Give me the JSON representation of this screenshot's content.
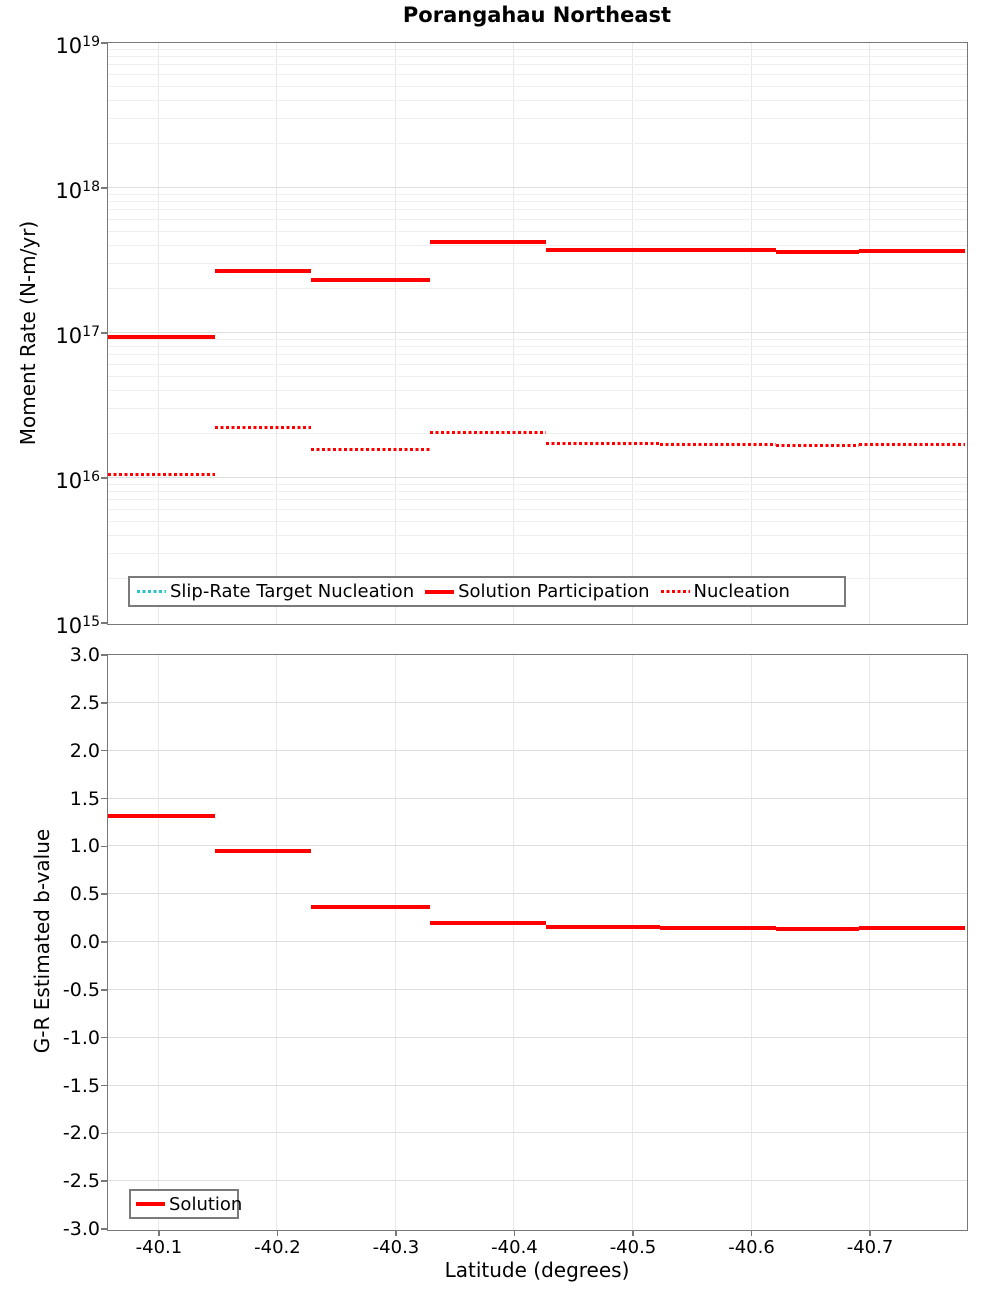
{
  "figure_title": "Porangahau Northeast",
  "colors": {
    "solution_red": "#ff0000",
    "slip_rate_target_teal": "#2bc4c6",
    "frame_gray": "#787878",
    "grid_minor": "#efefef",
    "grid_major": "#dedede",
    "background": "#ffffff"
  },
  "chart_data": [
    {
      "type": "line",
      "subtype": "horizontal-step-segments",
      "title": "Porangahau Northeast",
      "ylabel": "Moment Rate (N-m/yr)",
      "yscale": "log",
      "ylim": [
        1000000000000000.0,
        1e+19
      ],
      "y_tick_exponents": [
        19,
        18,
        17,
        16,
        15
      ],
      "xlim": [
        -40.057,
        -40.781
      ],
      "x_ticks": [
        -40.1,
        -40.2,
        -40.3,
        -40.4,
        -40.5,
        -40.6,
        -40.7
      ],
      "x_tick_labels_visible": false,
      "grid": true,
      "legend_location": "lower left",
      "legend": [
        {
          "label": "Slip-Rate Target Nucleation",
          "style": "dotted",
          "color": "#2bc4c6"
        },
        {
          "label": "Solution Participation",
          "style": "solid",
          "color": "#ff0000"
        },
        {
          "label": "Nucleation",
          "style": "dotted",
          "color": "#ff0000"
        }
      ],
      "section_boundaries": [
        -40.057,
        -40.148,
        -40.229,
        -40.329,
        -40.427,
        -40.523,
        -40.621,
        -40.691,
        -40.781
      ],
      "series": [
        {
          "name": "Solution Participation",
          "style": "solid",
          "color": "#ff0000",
          "values": [
            9.3e+16,
            2.65e+17,
            2.3e+17,
            4.2e+17,
            3.7e+17,
            3.7e+17,
            3.6e+17,
            3.65e+17
          ]
        },
        {
          "name": "Nucleation",
          "style": "dotted",
          "color": "#ff0000",
          "values": [
            1.05e+16,
            2.2e+16,
            1.55e+16,
            2.05e+16,
            1.72e+16,
            1.7e+16,
            1.65e+16,
            1.68e+16
          ]
        },
        {
          "name": "Slip-Rate Target Nucleation",
          "style": "dotted",
          "color": "#2bc4c6",
          "values": []
        }
      ]
    },
    {
      "type": "line",
      "subtype": "horizontal-step-segments",
      "title": "",
      "ylabel": "G-R Estimated b-value",
      "xlabel": "Latitude (degrees)",
      "yscale": "linear",
      "ylim": [
        -3.0,
        3.0
      ],
      "y_ticks": [
        3.0,
        2.5,
        2.0,
        1.5,
        1.0,
        0.5,
        0.0,
        -0.5,
        -1.0,
        -1.5,
        -2.0,
        -2.5,
        -3.0
      ],
      "xlim": [
        -40.057,
        -40.781
      ],
      "x_ticks": [
        -40.1,
        -40.2,
        -40.3,
        -40.4,
        -40.5,
        -40.6,
        -40.7
      ],
      "x_tick_labels_visible": true,
      "grid": true,
      "legend_location": "lower left",
      "legend": [
        {
          "label": "Solution",
          "style": "solid",
          "color": "#ff0000"
        }
      ],
      "section_boundaries": [
        -40.057,
        -40.148,
        -40.229,
        -40.329,
        -40.427,
        -40.523,
        -40.621,
        -40.691,
        -40.781
      ],
      "series": [
        {
          "name": "Solution",
          "style": "solid",
          "color": "#ff0000",
          "values": [
            1.31,
            0.95,
            0.36,
            0.19,
            0.15,
            0.145,
            0.13,
            0.14
          ]
        }
      ]
    }
  ]
}
